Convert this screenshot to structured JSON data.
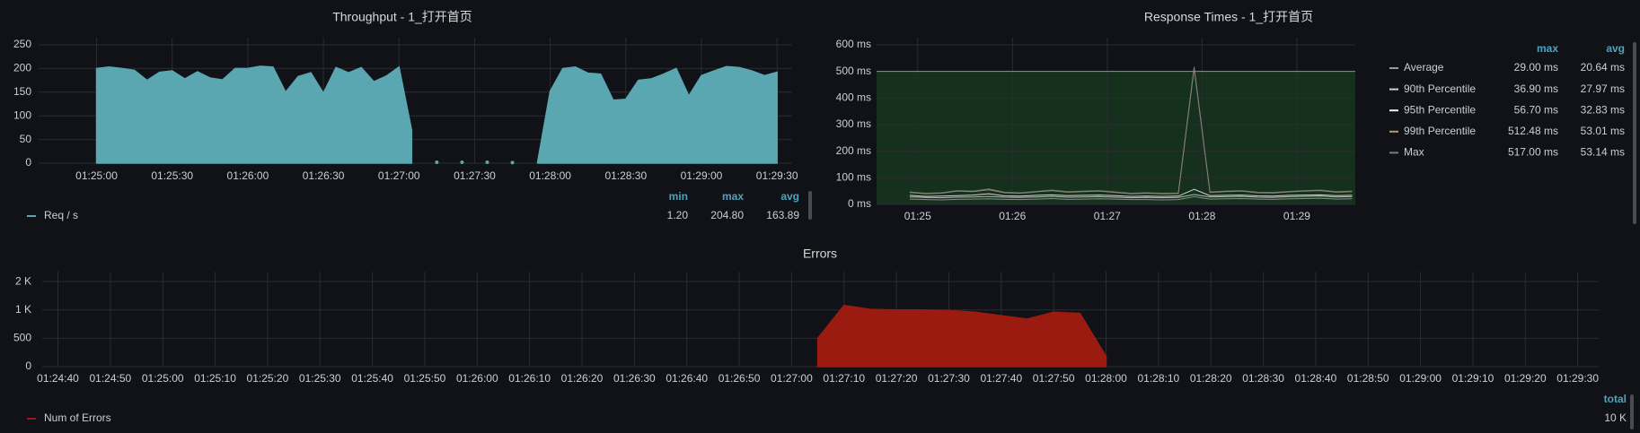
{
  "chart_data": [
    {
      "type": "area",
      "title": "Throughput - 1_打开首页",
      "x": [
        "01:25:00",
        "01:25:05",
        "01:25:10",
        "01:25:15",
        "01:25:20",
        "01:25:25",
        "01:25:30",
        "01:25:35",
        "01:25:40",
        "01:25:45",
        "01:25:50",
        "01:25:55",
        "01:26:00",
        "01:26:05",
        "01:26:10",
        "01:26:15",
        "01:26:20",
        "01:26:25",
        "01:26:30",
        "01:26:35",
        "01:26:40",
        "01:26:45",
        "01:26:50",
        "01:26:55",
        "01:27:00",
        "01:27:05",
        "01:27:10",
        "01:27:15",
        "01:27:20",
        "01:27:25",
        "01:27:30",
        "01:27:35",
        "01:27:40",
        "01:27:45",
        "01:27:50",
        "01:27:55",
        "01:28:00",
        "01:28:05",
        "01:28:10",
        "01:28:15",
        "01:28:20",
        "01:28:25",
        "01:28:30",
        "01:28:35",
        "01:28:40",
        "01:28:45",
        "01:28:50",
        "01:28:55",
        "01:29:00",
        "01:29:05",
        "01:29:10",
        "01:29:15",
        "01:29:20",
        "01:29:25",
        "01:29:30"
      ],
      "series": [
        {
          "name": "Req / s",
          "color": "#5aa7b1",
          "values": [
            200,
            203,
            200,
            196,
            175,
            192,
            195,
            178,
            193,
            180,
            176,
            200,
            200,
            204.8,
            203,
            150,
            183,
            191,
            148,
            202,
            191,
            202,
            172,
            184,
            203,
            70,
            null,
            2,
            null,
            2,
            null,
            2,
            null,
            1.2,
            null,
            2,
            152,
            200,
            203,
            190,
            188,
            133,
            135,
            175,
            178,
            188,
            200,
            142,
            185,
            195,
            204,
            202,
            195,
            185,
            192
          ],
          "stats": [
            "1.20",
            "204.80",
            "163.89"
          ]
        }
      ],
      "legend_columns": [
        "min",
        "max",
        "avg"
      ],
      "xlim": [
        "01:24:37",
        "01:29:36"
      ],
      "xticks": [
        "01:25:00",
        "01:25:30",
        "01:26:00",
        "01:26:30",
        "01:27:00",
        "01:27:30",
        "01:28:00",
        "01:28:30",
        "01:29:00",
        "01:29:30"
      ],
      "ylim": [
        0,
        250
      ],
      "yticks": [
        0,
        50,
        100,
        150,
        200,
        250
      ],
      "grid": true
    },
    {
      "type": "line",
      "title": "Response Times - 1_打开首页",
      "x": [
        "01:24:55",
        "01:25:05",
        "01:25:15",
        "01:25:25",
        "01:25:35",
        "01:25:45",
        "01:25:55",
        "01:26:05",
        "01:26:15",
        "01:26:25",
        "01:26:35",
        "01:26:45",
        "01:26:55",
        "01:27:05",
        "01:27:15",
        "01:27:25",
        "01:27:35",
        "01:27:45",
        "01:27:55",
        "01:28:05",
        "01:28:15",
        "01:28:25",
        "01:28:35",
        "01:28:45",
        "01:28:55",
        "01:29:05",
        "01:29:15",
        "01:29:25",
        "01:29:35"
      ],
      "series": [
        {
          "name": "Average",
          "color": "#9a9a9a",
          "values": [
            20,
            18,
            17,
            19,
            20,
            21,
            19,
            18,
            20,
            22,
            19,
            20,
            21,
            20,
            18,
            18,
            17,
            18,
            29,
            20,
            21,
            22,
            20,
            19,
            21,
            22,
            23,
            20,
            21
          ],
          "stats": [
            "29.00 ms",
            "20.64 ms"
          ]
        },
        {
          "name": "90th Percentile",
          "color": "#d0d0d0",
          "values": [
            28,
            26,
            25,
            27,
            28,
            30,
            27,
            26,
            28,
            30,
            27,
            28,
            29,
            27,
            25,
            26,
            25,
            26,
            36.9,
            28,
            29,
            30,
            27,
            26,
            29,
            30,
            31,
            28,
            29
          ],
          "stats": [
            "36.90 ms",
            "27.97 ms"
          ]
        },
        {
          "name": "95th Percentile",
          "color": "#f2f2f2",
          "values": [
            34,
            30,
            31,
            33,
            35,
            40,
            32,
            31,
            34,
            36,
            33,
            34,
            35,
            33,
            30,
            31,
            30,
            31,
            56.7,
            33,
            34,
            35,
            32,
            31,
            34,
            35,
            36,
            33,
            34
          ],
          "stats": [
            "56.70 ms",
            "32.83 ms"
          ]
        },
        {
          "name": "99th Percentile",
          "color": "#b59a7a",
          "values": [
            45,
            40,
            42,
            50,
            48,
            55,
            44,
            42,
            47,
            52,
            46,
            48,
            50,
            45,
            40,
            42,
            40,
            41,
            512.48,
            45,
            48,
            50,
            44,
            43,
            47,
            50,
            52,
            46,
            48
          ],
          "stats": [
            "512.48 ms",
            "53.01 ms"
          ]
        },
        {
          "name": "Max",
          "color": "#7d7d7d",
          "values": [
            47,
            42,
            44,
            52,
            50,
            58,
            46,
            44,
            49,
            54,
            48,
            50,
            52,
            47,
            42,
            44,
            42,
            43,
            517,
            47,
            50,
            52,
            46,
            45,
            49,
            52,
            54,
            48,
            50
          ],
          "stats": [
            "517.00 ms",
            "53.14 ms"
          ]
        }
      ],
      "legend_columns": [
        "max",
        "avg"
      ],
      "threshold": 500,
      "xlim": [
        "01:24:34",
        "01:29:37"
      ],
      "xticks": [
        {
          "value": "01:25:00",
          "label": "01:25"
        },
        {
          "value": "01:26:00",
          "label": "01:26"
        },
        {
          "value": "01:27:00",
          "label": "01:27"
        },
        {
          "value": "01:28:00",
          "label": "01:28"
        },
        {
          "value": "01:29:00",
          "label": "01:29"
        }
      ],
      "ylim": [
        0,
        600
      ],
      "yticks": [
        {
          "value": 0,
          "label": "0 ms"
        },
        {
          "value": 100,
          "label": "100 ms"
        },
        {
          "value": 200,
          "label": "200 ms"
        },
        {
          "value": 300,
          "label": "300 ms"
        },
        {
          "value": 400,
          "label": "400 ms"
        },
        {
          "value": 500,
          "label": "500 ms"
        },
        {
          "value": 600,
          "label": "600 ms"
        }
      ],
      "grid": true
    },
    {
      "type": "area",
      "title": "Errors",
      "x": [
        "01:27:05",
        "01:27:10",
        "01:27:15",
        "01:27:20",
        "01:27:25",
        "01:27:30",
        "01:27:35",
        "01:27:40",
        "01:27:45",
        "01:27:50",
        "01:27:55",
        "01:28:00"
      ],
      "series": [
        {
          "name": "Num of Errors",
          "color": "#9c1b10",
          "values": [
            500,
            1080,
            1010,
            1000,
            1000,
            990,
            960,
            900,
            840,
            960,
            940,
            180
          ],
          "stats": [
            "10 K"
          ]
        }
      ],
      "legend_columns": [
        "total"
      ],
      "xlim": [
        "01:24:37",
        "01:29:34"
      ],
      "xticks": [
        "01:24:40",
        "01:24:50",
        "01:25:00",
        "01:25:10",
        "01:25:20",
        "01:25:30",
        "01:25:40",
        "01:25:50",
        "01:26:00",
        "01:26:10",
        "01:26:20",
        "01:26:30",
        "01:26:40",
        "01:26:50",
        "01:27:00",
        "01:27:10",
        "01:27:20",
        "01:27:30",
        "01:27:40",
        "01:27:50",
        "01:28:00",
        "01:28:10",
        "01:28:20",
        "01:28:30",
        "01:28:40",
        "01:28:50",
        "01:29:00",
        "01:29:10",
        "01:29:20",
        "01:29:30"
      ],
      "ylim": [
        0,
        1550
      ],
      "yticks": [
        0,
        500,
        {
          "value": 1000,
          "label": "1 K"
        },
        {
          "value": 1500,
          "label": "2 K"
        }
      ],
      "grid": true
    }
  ]
}
